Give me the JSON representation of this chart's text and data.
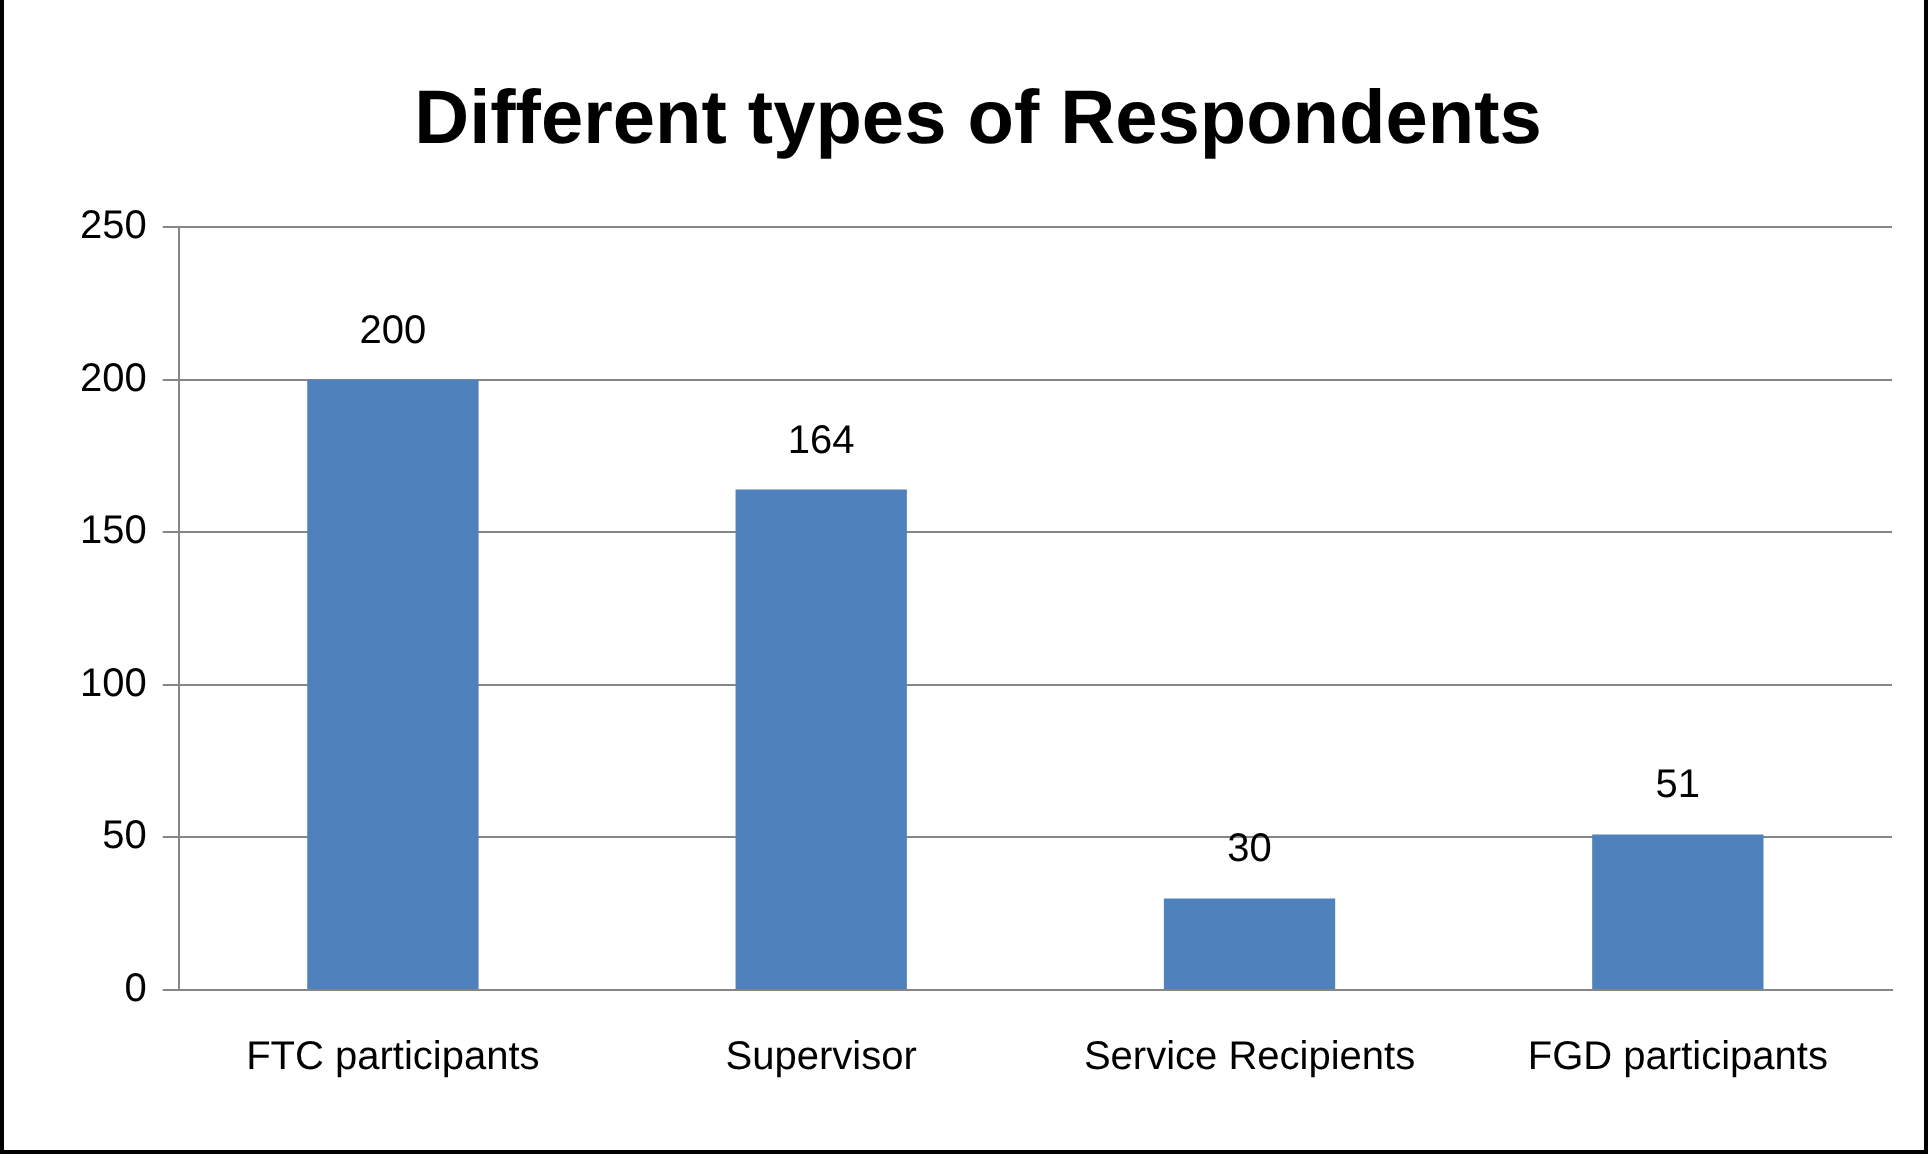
{
  "chart_data": {
    "type": "bar",
    "title": "Different types of Respondents",
    "categories": [
      "FTC participants",
      "Supervisor",
      "Service Recipients",
      "FGD participants"
    ],
    "values": [
      200,
      164,
      30,
      51
    ],
    "color": "#4f81bd",
    "ylim": [
      0,
      250
    ],
    "yticks": [
      0,
      50,
      100,
      150,
      200,
      250
    ],
    "grid": "y",
    "data_labels": true,
    "legend": false
  }
}
